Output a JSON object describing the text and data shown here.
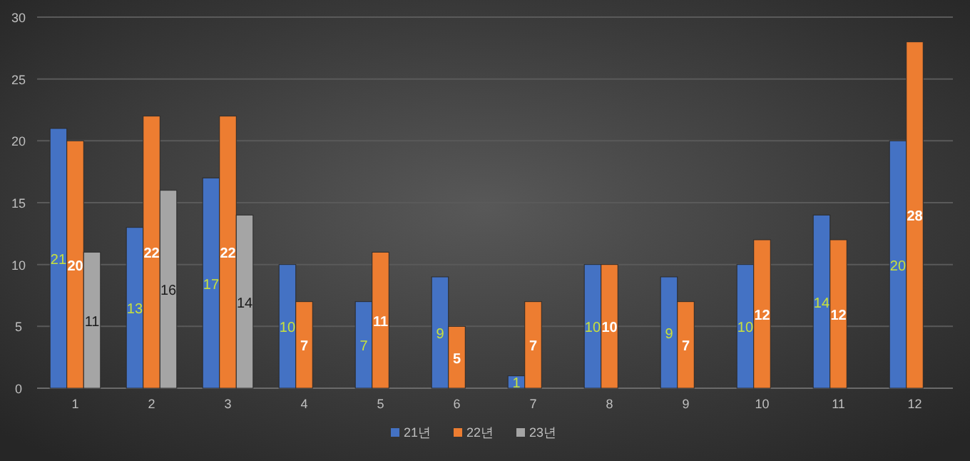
{
  "chart_data": {
    "type": "bar",
    "categories": [
      "1",
      "2",
      "3",
      "4",
      "5",
      "6",
      "7",
      "8",
      "9",
      "10",
      "11",
      "12"
    ],
    "series": [
      {
        "name": "21년",
        "color": "#4472c4",
        "values": [
          21,
          13,
          17,
          10,
          7,
          9,
          1,
          10,
          9,
          10,
          14,
          20
        ]
      },
      {
        "name": "22년",
        "color": "#ed7d31",
        "values": [
          20,
          22,
          22,
          7,
          11,
          5,
          7,
          10,
          7,
          12,
          12,
          28
        ]
      },
      {
        "name": "23년",
        "color": "#a5a5a5",
        "values": [
          11,
          16,
          14,
          null,
          null,
          null,
          null,
          null,
          null,
          null,
          null,
          null
        ]
      }
    ],
    "ylim": [
      0,
      30
    ],
    "yticks": [
      0,
      5,
      10,
      15,
      20,
      25,
      30
    ],
    "grid": "y",
    "legend": "bottom",
    "data_labels": true
  }
}
